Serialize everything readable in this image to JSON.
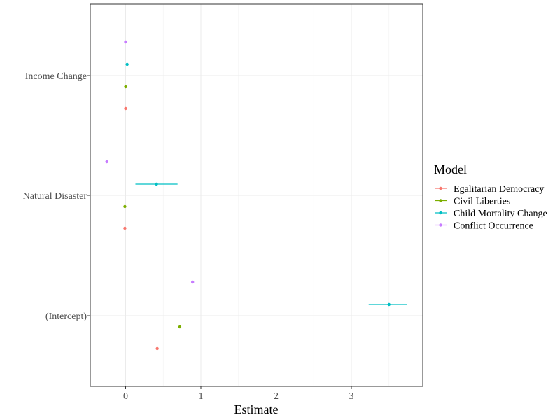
{
  "chart_data": {
    "type": "scatter",
    "subtype": "coefficient-plot",
    "title": "",
    "xlabel": "Estimate",
    "ylabel": "",
    "xlim": [
      -0.45,
      3.9
    ],
    "x_ticks": [
      0,
      1,
      2,
      3
    ],
    "x_tick_labels": [
      "0",
      "1",
      "2",
      "3"
    ],
    "categories": [
      "Income Change",
      "Natural Disaster",
      "(Intercept)"
    ],
    "grid": true,
    "legend": {
      "title": "Model",
      "position": "right"
    },
    "series": [
      {
        "name": "Egalitarian Democracy",
        "color": "#F8766D",
        "points": [
          {
            "term": "Income Change",
            "estimate": 0.0,
            "low": 0.0,
            "high": 0.0
          },
          {
            "term": "Natural Disaster",
            "estimate": -0.01,
            "low": -0.01,
            "high": -0.01
          },
          {
            "term": "(Intercept)",
            "estimate": 0.42,
            "low": 0.41,
            "high": 0.43
          }
        ]
      },
      {
        "name": "Civil Liberties",
        "color": "#7CAE00",
        "points": [
          {
            "term": "Income Change",
            "estimate": 0.0,
            "low": 0.0,
            "high": 0.0
          },
          {
            "term": "Natural Disaster",
            "estimate": -0.01,
            "low": -0.01,
            "high": -0.01
          },
          {
            "term": "(Intercept)",
            "estimate": 0.72,
            "low": 0.71,
            "high": 0.73
          }
        ]
      },
      {
        "name": "Child Mortality Change",
        "color": "#00BFC4",
        "points": [
          {
            "term": "Income Change",
            "estimate": 0.02,
            "low": 0.01,
            "high": 0.03
          },
          {
            "term": "Natural Disaster",
            "estimate": 0.41,
            "low": 0.13,
            "high": 0.69
          },
          {
            "term": "(Intercept)",
            "estimate": 3.5,
            "low": 3.23,
            "high": 3.74
          }
        ]
      },
      {
        "name": "Conflict Occurrence",
        "color": "#C77CFF",
        "points": [
          {
            "term": "Income Change",
            "estimate": 0.0,
            "low": 0.0,
            "high": 0.0
          },
          {
            "term": "Natural Disaster",
            "estimate": -0.25,
            "low": -0.26,
            "high": -0.24
          },
          {
            "term": "(Intercept)",
            "estimate": 0.89,
            "low": 0.88,
            "high": 0.9
          }
        ]
      }
    ]
  }
}
